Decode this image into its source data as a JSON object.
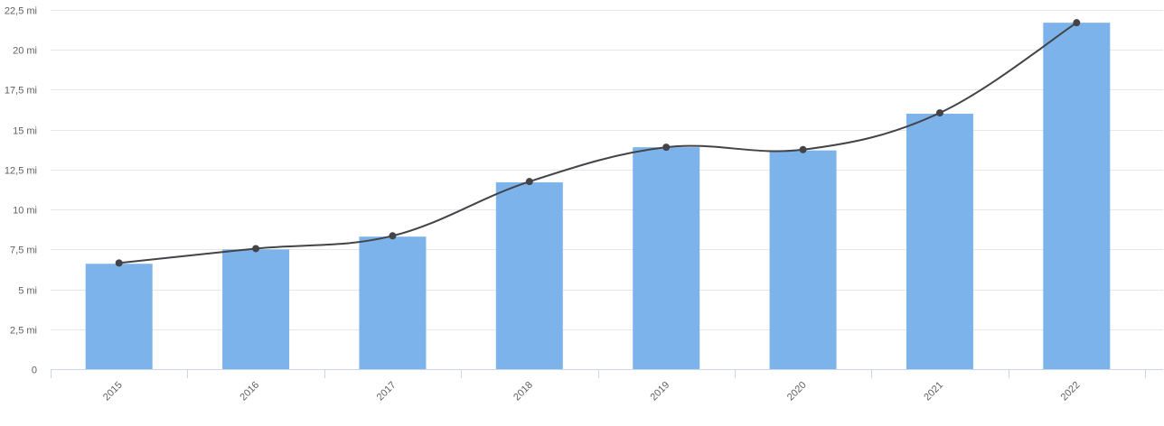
{
  "chart_data": {
    "type": "bar",
    "categories": [
      "2015",
      "2016",
      "2017",
      "2018",
      "2019",
      "2020",
      "2021",
      "2022"
    ],
    "series": [
      {
        "type": "bar",
        "values": [
          6.6,
          7.5,
          8.3,
          11.7,
          13.9,
          13.7,
          16.0,
          21.7
        ],
        "color": "#7cb3ea"
      },
      {
        "type": "line",
        "values": [
          6.65,
          7.55,
          8.35,
          11.75,
          13.9,
          13.75,
          16.05,
          21.7
        ],
        "color": "#434348",
        "smooth": true,
        "markers": true
      }
    ],
    "ylim": [
      0,
      22.5
    ],
    "yticks": [
      0,
      2.5,
      5,
      7.5,
      10,
      12.5,
      15,
      17.5,
      20,
      22.5
    ],
    "ytick_labels": [
      "0",
      "2,5 mi",
      "5 mi",
      "7,5 mi",
      "10 mi",
      "12,5 mi",
      "15 mi",
      "17,5 mi",
      "20 mi",
      "22,5 mi"
    ],
    "grid": true,
    "title": "",
    "xlabel": "",
    "ylabel": ""
  }
}
